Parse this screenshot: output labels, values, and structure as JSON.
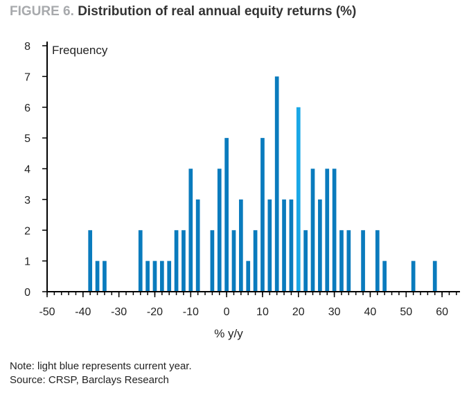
{
  "figure": {
    "number": "FIGURE 6.",
    "title": "Distribution of real annual equity returns (%)"
  },
  "chart_data": {
    "type": "bar",
    "ylabel": "Frequency",
    "xlabel": "% y/y",
    "xlim": [
      -50,
      65
    ],
    "ylim": [
      0,
      8
    ],
    "x_ticks": [
      -50,
      -40,
      -30,
      -20,
      -10,
      0,
      10,
      20,
      30,
      40,
      50,
      60
    ],
    "y_ticks": [
      0,
      1,
      2,
      3,
      4,
      5,
      6,
      7,
      8
    ],
    "bin_width": 2,
    "x": [
      -38,
      -36,
      -34,
      -24,
      -22,
      -20,
      -18,
      -16,
      -14,
      -12,
      -10,
      -8,
      -4,
      -2,
      0,
      2,
      4,
      6,
      8,
      10,
      12,
      14,
      16,
      18,
      20,
      22,
      24,
      26,
      28,
      30,
      32,
      34,
      38,
      42,
      44,
      52,
      58
    ],
    "values": [
      2,
      1,
      1,
      2,
      1,
      1,
      1,
      1,
      2,
      2,
      4,
      3,
      2,
      4,
      5,
      2,
      3,
      1,
      2,
      5,
      3,
      7,
      3,
      3,
      6,
      2,
      4,
      3,
      4,
      4,
      2,
      2,
      2,
      2,
      1,
      1,
      1
    ],
    "highlight_x": 20,
    "colors": {
      "bar": "#0a7bbd",
      "highlight": "#1aa7e6",
      "axis": "#000000"
    }
  },
  "notes": {
    "note": "Note: light blue represents current year.",
    "source": "Source: CRSP, Barclays Research"
  }
}
